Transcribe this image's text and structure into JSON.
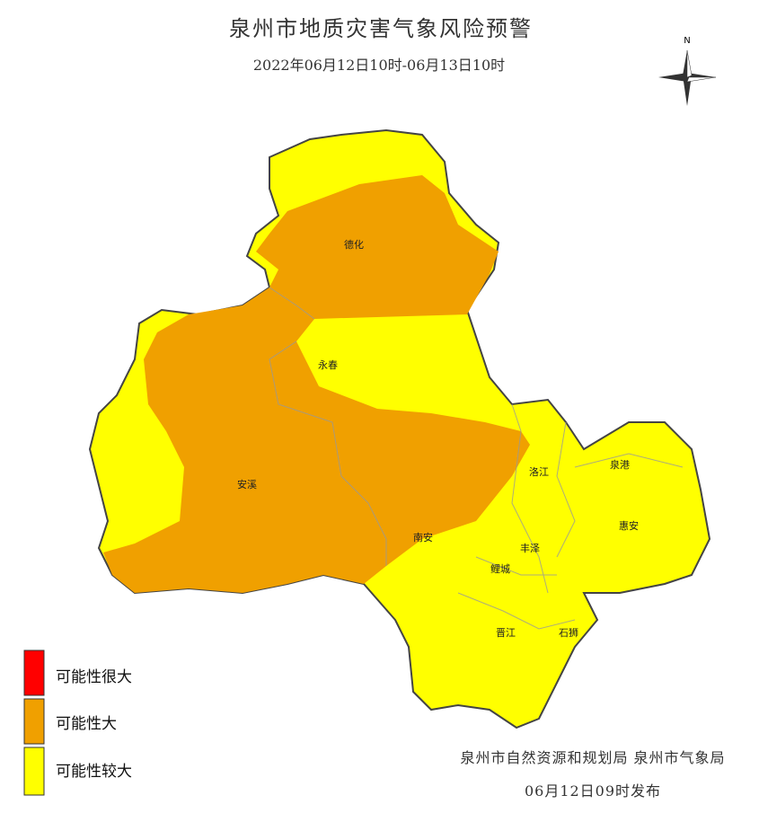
{
  "header": {
    "title": "泉州市地质灾害气象风险预警",
    "subtitle": "2022年06月12日10时-06月13日10时"
  },
  "compass": "N",
  "regions": [
    "德化",
    "永春",
    "安溪",
    "南安",
    "洛江",
    "泉港",
    "惠安",
    "丰泽",
    "鲤城",
    "晋江",
    "石狮"
  ],
  "legend": [
    "可能性很大",
    "可能性大",
    "可能性较大"
  ],
  "footer": {
    "issuer": "泉州市自然资源和规划局 泉州市气象局",
    "time": "06月12日09时发布"
  }
}
